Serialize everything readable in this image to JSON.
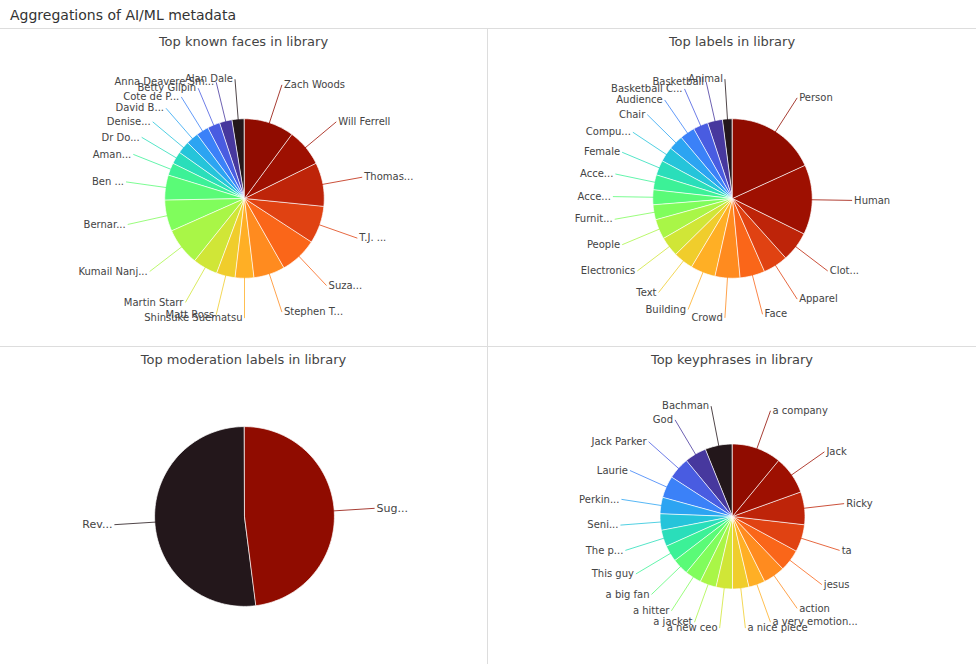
{
  "title": "Aggregations of AI/ML metadata",
  "chart_data": [
    {
      "type": "pie",
      "title": "Top known faces in library",
      "categories": [
        "Alan Dale",
        "Anna Deavere Sm...",
        "Betty Gilpin",
        "Cote de P...",
        "David B...",
        "Denise...",
        "Dr Do...",
        "Aman...",
        "Ben ...",
        "Bernar...",
        "Kumail Nanj...",
        "Martin Starr",
        "Matt Ross",
        "Shinsuke Suematsu",
        "Stephen T...",
        "Suza...",
        "T.J. ...",
        "Thomas...",
        "Will Ferrell",
        "Zach Woods"
      ],
      "values": [
        2,
        2,
        2,
        2,
        2,
        2,
        2,
        2,
        4,
        5,
        6,
        4,
        3,
        3,
        5,
        6,
        6,
        7,
        6,
        8
      ]
    },
    {
      "type": "pie",
      "title": "Top labels in library",
      "categories": [
        "Animal",
        "Basketball",
        "Basketball C...",
        "Audience",
        "Chair",
        "Compu...",
        "Female",
        "Acce...",
        "Acce...",
        "Furnit...",
        "People",
        "Electronics",
        "Text",
        "Building",
        "Crowd",
        "Face",
        "Apparel",
        "Clot...",
        "Human",
        "Person"
      ],
      "values": [
        2,
        3,
        3,
        3,
        3,
        3,
        3,
        3,
        3,
        3,
        4,
        4,
        4,
        5,
        5,
        5,
        5,
        6,
        14,
        18
      ]
    },
    {
      "type": "pie",
      "title": "Top moderation labels in library",
      "categories": [
        "Rev...",
        "Sug..."
      ],
      "values": [
        52,
        48
      ]
    },
    {
      "type": "pie",
      "title": "Top keyphrases in library",
      "categories": [
        "Bachman",
        "God",
        "Jack Parker",
        "Laurie",
        "Perkin...",
        "Seni...",
        "The p...",
        "This guy",
        "a big fan",
        "a hitter",
        "a jacket",
        "a new ceo",
        "a nice piece",
        "a very emotion...",
        "action",
        "jesus",
        "ta",
        "Ricky",
        "Jack",
        "a company"
      ],
      "values": [
        5,
        4,
        4,
        4,
        3,
        3,
        3,
        3,
        3,
        3,
        3,
        3,
        3,
        3,
        4,
        4,
        5,
        6,
        7,
        9
      ]
    }
  ]
}
